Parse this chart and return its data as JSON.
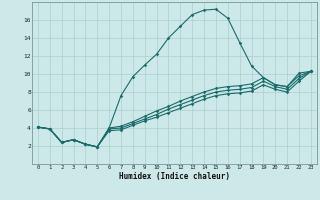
{
  "xlabel": "Humidex (Indice chaleur)",
  "bg_color": "#cde8e8",
  "line_color": "#1a6b6b",
  "grid_color": "#aacfcf",
  "xlim": [
    -0.5,
    23.5
  ],
  "ylim": [
    0,
    18
  ],
  "xticks": [
    0,
    1,
    2,
    3,
    4,
    5,
    6,
    7,
    8,
    9,
    10,
    11,
    12,
    13,
    14,
    15,
    16,
    17,
    18,
    19,
    20,
    21,
    22,
    23
  ],
  "yticks": [
    2,
    4,
    6,
    8,
    10,
    12,
    14,
    16
  ],
  "line1_x": [
    0,
    1,
    2,
    3,
    4,
    5,
    6,
    7,
    8,
    9,
    10,
    11,
    12,
    13,
    14,
    15,
    16,
    17,
    18,
    19,
    20,
    21,
    22,
    23
  ],
  "line1_y": [
    4.1,
    3.9,
    2.4,
    2.7,
    2.2,
    1.9,
    4.0,
    7.6,
    9.7,
    11.0,
    12.2,
    14.0,
    15.3,
    16.6,
    17.1,
    17.2,
    16.2,
    13.5,
    10.9,
    9.6,
    8.8,
    8.6,
    10.1,
    10.3
  ],
  "line2_x": [
    0,
    1,
    2,
    3,
    4,
    5,
    6,
    7,
    8,
    9,
    10,
    11,
    12,
    13,
    14,
    15,
    16,
    17,
    18,
    19,
    20,
    21,
    22,
    23
  ],
  "line2_y": [
    4.1,
    3.9,
    2.4,
    2.7,
    2.2,
    1.9,
    4.0,
    4.2,
    4.7,
    5.3,
    5.9,
    6.4,
    7.0,
    7.5,
    8.0,
    8.4,
    8.6,
    8.7,
    8.9,
    9.6,
    8.8,
    8.6,
    9.8,
    10.3
  ],
  "line3_x": [
    0,
    1,
    2,
    3,
    4,
    5,
    6,
    7,
    8,
    9,
    10,
    11,
    12,
    13,
    14,
    15,
    16,
    17,
    18,
    19,
    20,
    21,
    22,
    23
  ],
  "line3_y": [
    4.1,
    3.9,
    2.4,
    2.7,
    2.2,
    1.9,
    3.9,
    4.0,
    4.5,
    5.0,
    5.5,
    6.1,
    6.6,
    7.1,
    7.6,
    8.0,
    8.2,
    8.3,
    8.5,
    9.2,
    8.6,
    8.3,
    9.5,
    10.3
  ],
  "line4_x": [
    0,
    1,
    2,
    3,
    4,
    5,
    6,
    7,
    8,
    9,
    10,
    11,
    12,
    13,
    14,
    15,
    16,
    17,
    18,
    19,
    20,
    21,
    22,
    23
  ],
  "line4_y": [
    4.1,
    3.9,
    2.4,
    2.7,
    2.2,
    1.9,
    3.7,
    3.8,
    4.3,
    4.8,
    5.2,
    5.7,
    6.2,
    6.7,
    7.2,
    7.6,
    7.8,
    7.9,
    8.1,
    8.8,
    8.3,
    8.0,
    9.2,
    10.3
  ]
}
